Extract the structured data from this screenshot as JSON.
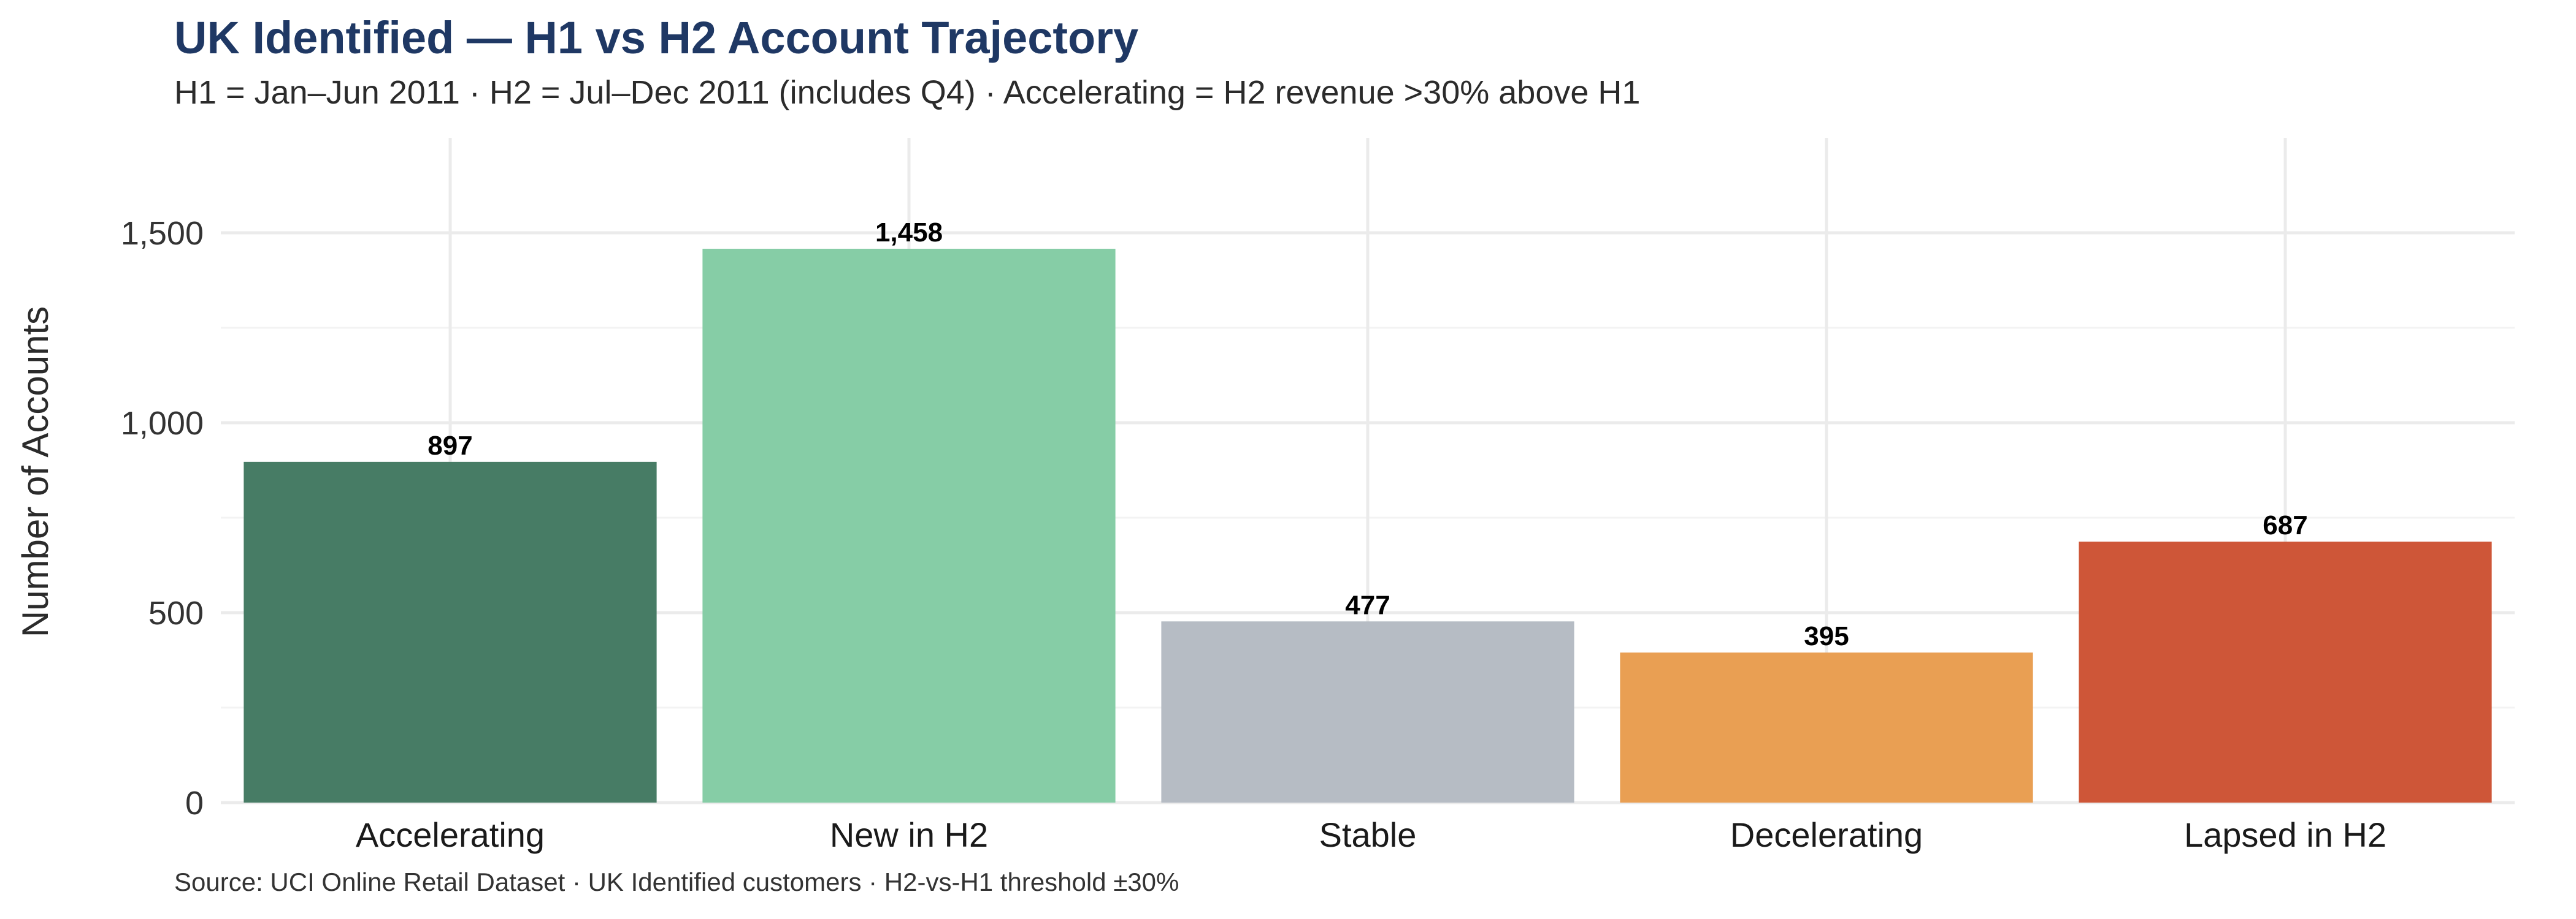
{
  "chart_data": {
    "type": "bar",
    "title": "UK Identified — H1 vs H2 Account Trajectory",
    "subtitle": "H1 = Jan–Jun 2011 · H2 = Jul–Dec 2011 (includes Q4) · Accelerating = H2 revenue >30% above H1",
    "caption": "Source: UCI Online Retail Dataset · UK Identified customers · H2-vs-H1 threshold ±30%",
    "xlabel": "",
    "ylabel": "Number of Accounts",
    "categories": [
      "Accelerating",
      "New in H2",
      "Stable",
      "Decelerating",
      "Lapsed in H2"
    ],
    "values": [
      897,
      1458,
      477,
      395,
      687
    ],
    "value_labels": [
      "897",
      "1,458",
      "477",
      "395",
      "687"
    ],
    "colors": [
      "#477c65",
      "#86cda6",
      "#b6bcc4",
      "#e99f53",
      "#ce5638"
    ],
    "title_color": "#1f3864",
    "ylim": [
      0,
      1750
    ],
    "yticks": [
      0,
      500,
      1000,
      1500
    ],
    "ytick_labels": [
      "0",
      "500",
      "1,000",
      "1,500"
    ],
    "grid": true,
    "legend": "none"
  }
}
